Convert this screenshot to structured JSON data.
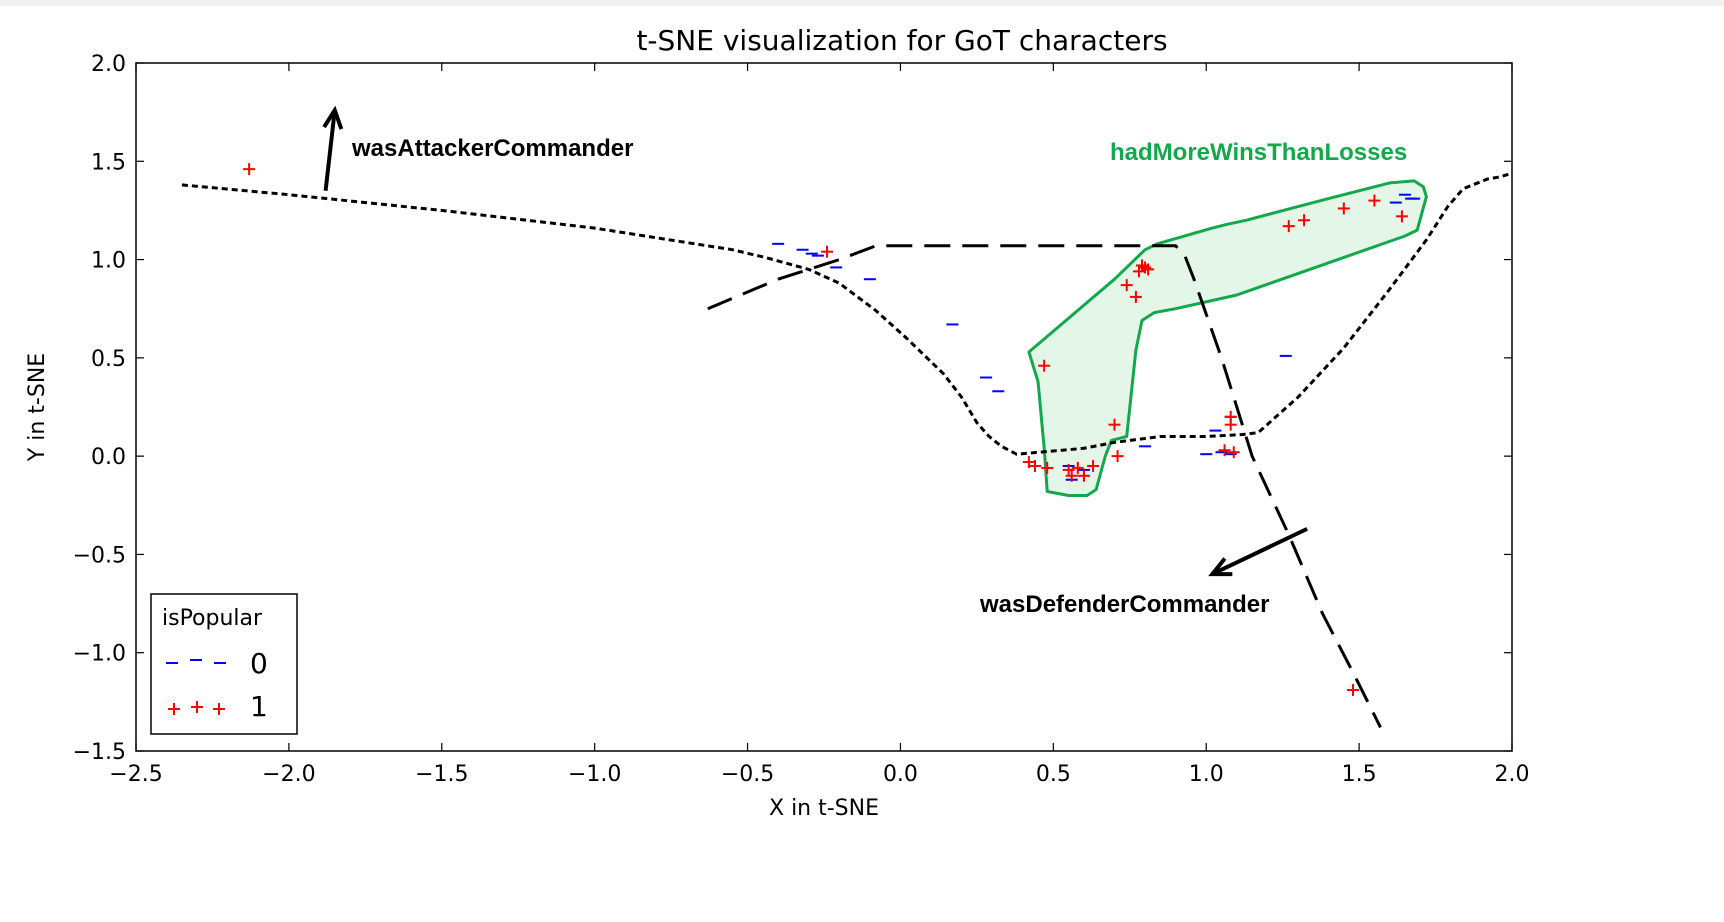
{
  "chart_data": {
    "type": "scatter",
    "title": "t-SNE visualization for GoT characters",
    "xlabel": "X in t-SNE",
    "ylabel": "Y in t-SNE",
    "xlim": [
      -2.5,
      2.0
    ],
    "ylim": [
      -1.5,
      2.0
    ],
    "xticks": [
      -2.5,
      -2.0,
      -1.5,
      -1.0,
      -0.5,
      0.0,
      0.5,
      1.0,
      1.5,
      2.0
    ],
    "yticks": [
      -1.5,
      -1.0,
      -0.5,
      0.0,
      0.5,
      1.0,
      1.5,
      2.0
    ],
    "xtick_labels": [
      "−2.5",
      "−2.0",
      "−1.5",
      "−1.0",
      "−0.5",
      "0.0",
      "0.5",
      "1.0",
      "1.5",
      "2.0"
    ],
    "ytick_labels": [
      "−1.5",
      "−1.0",
      "−0.5",
      "0.0",
      "0.5",
      "1.0",
      "1.5",
      "2.0"
    ],
    "grid": false,
    "legend": {
      "title": "isPopular",
      "placement": "lower-left",
      "entries": [
        {
          "label": "0",
          "marker": "_",
          "color": "#0000ff"
        },
        {
          "label": "1",
          "marker": "+",
          "color": "#ff0000"
        }
      ]
    },
    "series": [
      {
        "name": "0",
        "marker": "_",
        "color": "#0000ff",
        "points": [
          [
            -0.4,
            1.08
          ],
          [
            -0.32,
            1.05
          ],
          [
            -0.29,
            1.03
          ],
          [
            -0.27,
            1.02
          ],
          [
            -0.21,
            0.96
          ],
          [
            -0.1,
            0.9
          ],
          [
            0.17,
            0.67
          ],
          [
            0.28,
            0.4
          ],
          [
            0.32,
            0.33
          ],
          [
            0.55,
            -0.05
          ],
          [
            0.6,
            -0.07
          ],
          [
            0.56,
            -0.12
          ],
          [
            0.8,
            0.05
          ],
          [
            1.0,
            0.01
          ],
          [
            1.05,
            0.02
          ],
          [
            1.08,
            0.01
          ],
          [
            1.08,
            0.2
          ],
          [
            1.03,
            0.13
          ],
          [
            1.26,
            0.51
          ],
          [
            1.62,
            1.29
          ],
          [
            1.65,
            1.33
          ],
          [
            1.67,
            1.31
          ],
          [
            1.68,
            1.31
          ]
        ]
      },
      {
        "name": "1",
        "marker": "+",
        "color": "#ff0000",
        "points": [
          [
            -2.13,
            1.46
          ],
          [
            -0.24,
            1.04
          ],
          [
            0.47,
            0.46
          ],
          [
            0.42,
            -0.03
          ],
          [
            0.44,
            -0.05
          ],
          [
            0.48,
            -0.06
          ],
          [
            0.55,
            -0.07
          ],
          [
            0.56,
            -0.1
          ],
          [
            0.58,
            -0.06
          ],
          [
            0.6,
            -0.1
          ],
          [
            0.63,
            -0.05
          ],
          [
            0.7,
            0.16
          ],
          [
            0.71,
            0.0
          ],
          [
            0.74,
            0.87
          ],
          [
            0.77,
            0.81
          ],
          [
            0.78,
            0.94
          ],
          [
            0.8,
            0.96
          ],
          [
            0.79,
            0.97
          ],
          [
            0.81,
            0.95
          ],
          [
            1.06,
            0.03
          ],
          [
            1.08,
            0.16
          ],
          [
            1.08,
            0.2
          ],
          [
            1.09,
            0.02
          ],
          [
            1.27,
            1.17
          ],
          [
            1.32,
            1.2
          ],
          [
            1.45,
            1.26
          ],
          [
            1.55,
            1.3
          ],
          [
            1.64,
            1.22
          ],
          [
            1.48,
            -1.19
          ]
        ]
      }
    ],
    "annotations": [
      {
        "text": "wasAttackerCommander",
        "color": "#000000"
      },
      {
        "text": "wasDefenderCommander",
        "color": "#000000"
      },
      {
        "text": "hadMoreWinsThanLosses",
        "color": "#13a84c"
      }
    ],
    "overlays": {
      "attacker_boundary": [
        [
          -2.35,
          1.38
        ],
        [
          -2.0,
          1.33
        ],
        [
          -1.5,
          1.25
        ],
        [
          -1.0,
          1.16
        ],
        [
          -0.55,
          1.05
        ],
        [
          -0.44,
          1.01
        ],
        [
          -0.3,
          0.95
        ],
        [
          -0.2,
          0.88
        ],
        [
          -0.08,
          0.74
        ],
        [
          0.02,
          0.6
        ],
        [
          0.14,
          0.42
        ],
        [
          0.2,
          0.3
        ],
        [
          0.25,
          0.17
        ],
        [
          0.29,
          0.1
        ],
        [
          0.33,
          0.05
        ],
        [
          0.38,
          0.01
        ],
        [
          0.6,
          0.04
        ],
        [
          0.7,
          0.07
        ],
        [
          0.85,
          0.1
        ],
        [
          1.0,
          0.1
        ],
        [
          1.12,
          0.11
        ],
        [
          1.17,
          0.12
        ],
        [
          1.3,
          0.3
        ],
        [
          1.45,
          0.55
        ],
        [
          1.6,
          0.85
        ],
        [
          1.72,
          1.1
        ],
        [
          1.79,
          1.27
        ],
        [
          1.84,
          1.36
        ],
        [
          1.92,
          1.41
        ],
        [
          1.96,
          1.42
        ],
        [
          2.0,
          1.44
        ]
      ],
      "defender_boundary": [
        [
          -0.63,
          0.75
        ],
        [
          -0.4,
          0.9
        ],
        [
          -0.2,
          1.0
        ],
        [
          -0.08,
          1.07
        ],
        [
          0.5,
          1.07
        ],
        [
          0.9,
          1.07
        ],
        [
          0.93,
          1.02
        ],
        [
          0.96,
          0.9
        ],
        [
          1.05,
          0.5
        ],
        [
          1.15,
          0.0
        ],
        [
          1.27,
          -0.4
        ],
        [
          1.38,
          -0.8
        ],
        [
          1.48,
          -1.1
        ],
        [
          1.57,
          -1.38
        ]
      ],
      "attacker_arrow": [
        [
          -1.88,
          1.35
        ],
        [
          -1.85,
          1.76
        ]
      ],
      "defender_arrow": [
        [
          1.33,
          -0.37
        ],
        [
          1.02,
          -0.6
        ]
      ],
      "highlight_region": [
        [
          0.42,
          0.53
        ],
        [
          0.45,
          0.38
        ],
        [
          0.47,
          0.04
        ],
        [
          0.48,
          -0.18
        ],
        [
          0.55,
          -0.2
        ],
        [
          0.61,
          -0.2
        ],
        [
          0.64,
          -0.17
        ],
        [
          0.67,
          0.0
        ],
        [
          0.69,
          0.08
        ],
        [
          0.74,
          0.1
        ],
        [
          0.77,
          0.54
        ],
        [
          0.79,
          0.69
        ],
        [
          0.83,
          0.73
        ],
        [
          0.9,
          0.75
        ],
        [
          1.1,
          0.82
        ],
        [
          1.65,
          1.12
        ],
        [
          1.69,
          1.15
        ],
        [
          1.72,
          1.32
        ],
        [
          1.71,
          1.37
        ],
        [
          1.68,
          1.4
        ],
        [
          1.6,
          1.39
        ],
        [
          1.4,
          1.31
        ],
        [
          1.13,
          1.2
        ],
        [
          1.07,
          1.18
        ],
        [
          1.02,
          1.16
        ],
        [
          0.84,
          1.08
        ],
        [
          0.8,
          1.05
        ],
        [
          0.7,
          0.9
        ]
      ],
      "highlight_fill": "#dff5e3",
      "highlight_stroke": "#13a84c"
    }
  }
}
